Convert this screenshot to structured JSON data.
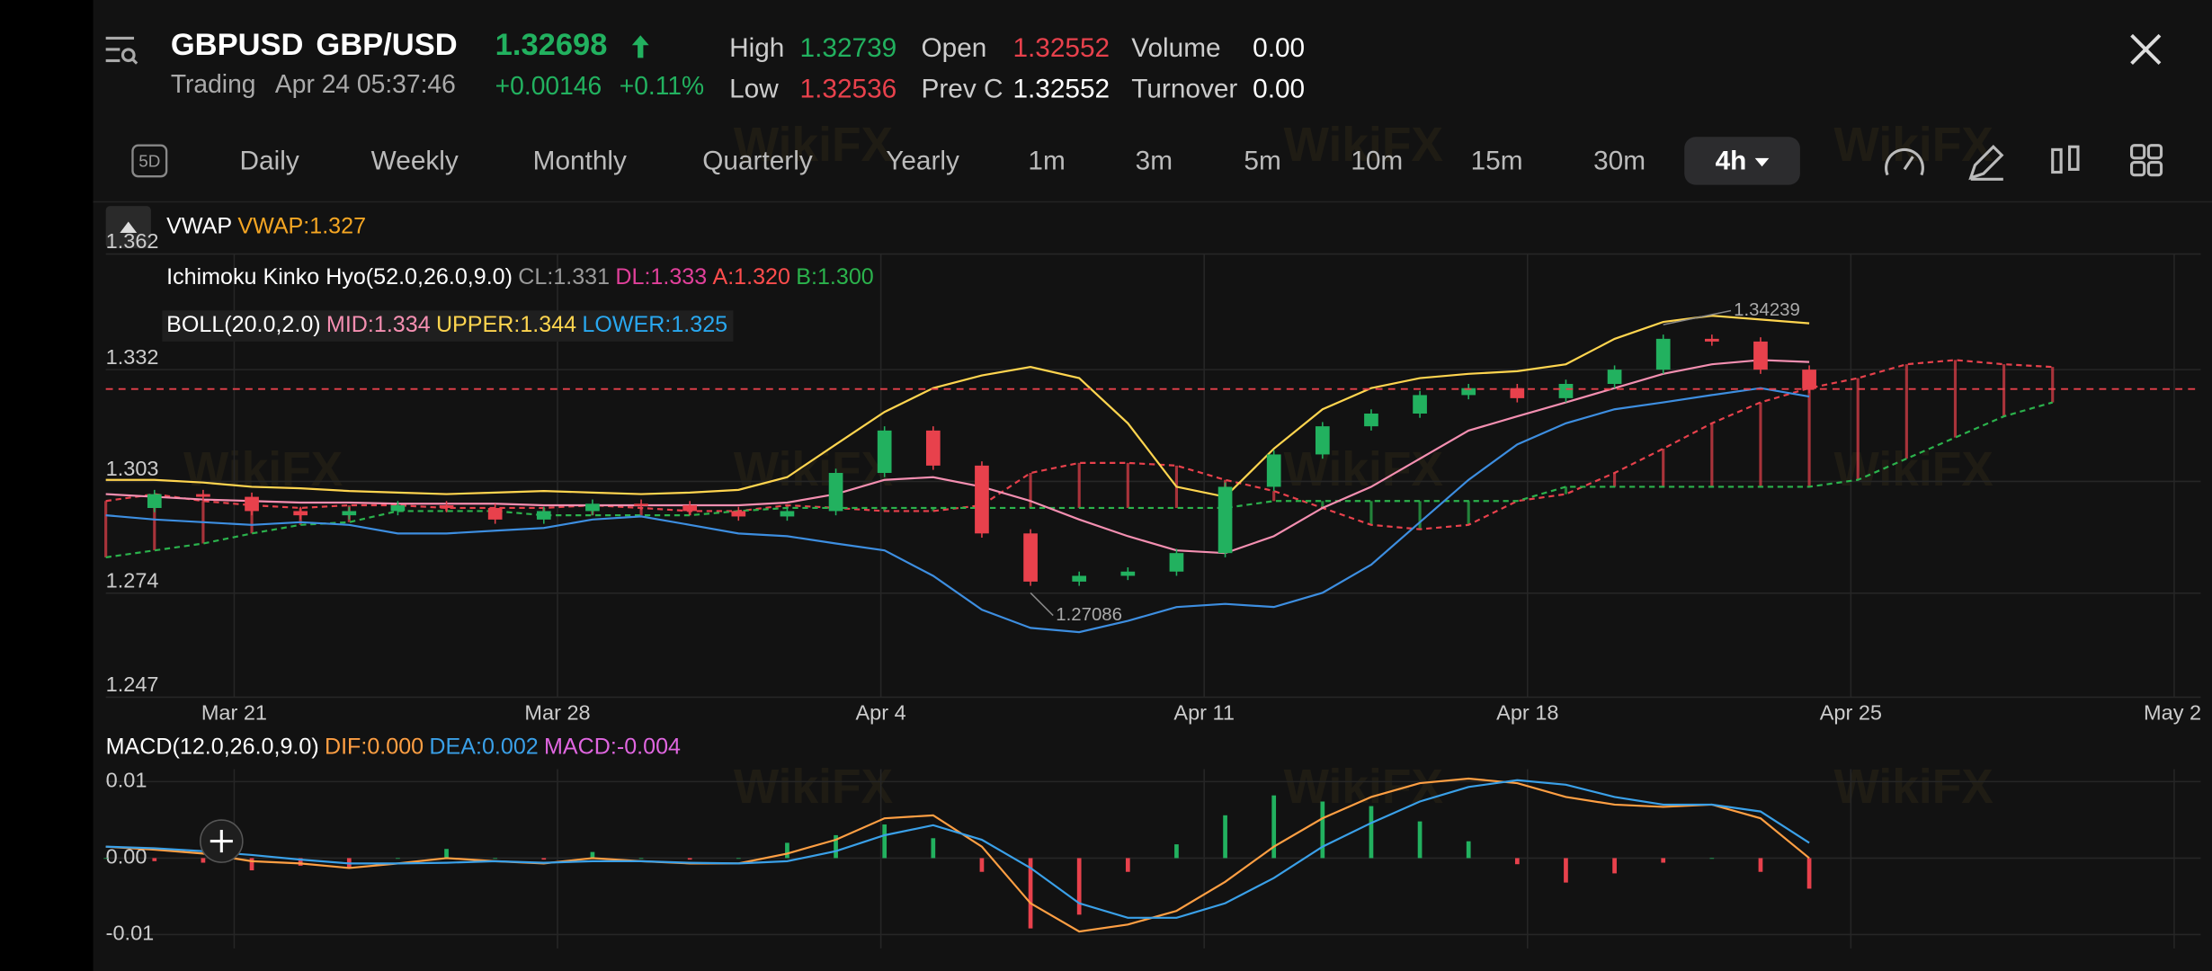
{
  "header": {
    "symbol": "GBPUSD",
    "name": "GBP/USD",
    "price": "1.32698",
    "status": "Trading",
    "time": "Apr 24 05:37:46",
    "change": "+0.00146",
    "change_pct": "+0.11%",
    "stats": [
      {
        "label": "High",
        "value": "1.32739",
        "color": "#22b15f"
      },
      {
        "label": "Open",
        "value": "1.32552",
        "color": "#e8414c"
      },
      {
        "label": "Volume",
        "value": "0.00",
        "color": "#ffffff"
      },
      {
        "label": "Low",
        "value": "1.32536",
        "color": "#e8414c"
      },
      {
        "label": "Prev C",
        "value": "1.32552",
        "color": "#ffffff"
      },
      {
        "label": "Turnover",
        "value": "0.00",
        "color": "#ffffff"
      }
    ]
  },
  "toolbar": {
    "badge": "5D",
    "periods": [
      {
        "label": "Daily"
      },
      {
        "label": "Weekly"
      },
      {
        "label": "Monthly"
      },
      {
        "label": "Quarterly"
      },
      {
        "label": "Yearly"
      },
      {
        "label": "1m"
      },
      {
        "label": "3m"
      },
      {
        "label": "5m"
      },
      {
        "label": "10m"
      },
      {
        "label": "15m"
      },
      {
        "label": "30m"
      },
      {
        "label": "4h",
        "selected": true
      }
    ]
  },
  "watermark": "WikiFX",
  "indicators": [
    {
      "title": "VWAP",
      "items": [
        {
          "text": "VWAP:1.327",
          "color": "#f5a623"
        }
      ]
    },
    {
      "title": "Ichimoku Kinko Hyo(52.0,26.0,9.0)",
      "items": [
        {
          "text": "CL:1.331",
          "color": "#9a9a9a"
        },
        {
          "text": "DL:1.333",
          "color": "#e0409a"
        },
        {
          "text": "A:1.320",
          "color": "#ff4d4d"
        },
        {
          "text": "B:1.300",
          "color": "#2bb24c"
        }
      ]
    },
    {
      "title": "BOLL(20.0,2.0)",
      "items": [
        {
          "text": "MID:1.334",
          "color": "#f48fb1"
        },
        {
          "text": "UPPER:1.344",
          "color": "#ffd54f"
        },
        {
          "text": "LOWER:1.325",
          "color": "#29a8f0"
        }
      ]
    },
    {
      "title": "MACD(12.0,26.0,9.0)",
      "items": [
        {
          "text": "DIF:0.000",
          "color": "#ff9f43"
        },
        {
          "text": "DEA:0.002",
          "color": "#3aa0e8"
        },
        {
          "text": "MACD:-0.004",
          "color": "#e066e0"
        }
      ]
    }
  ],
  "chart_data": [
    {
      "type": "candlestick",
      "x_labels": [
        "Mar 21",
        "Mar 28",
        "Apr 4",
        "Apr 11",
        "Apr 18",
        "Apr 25",
        "May 2"
      ],
      "ylim": [
        1.247,
        1.362
      ],
      "yticks": [
        1.362,
        1.332,
        1.303,
        1.274,
        1.247
      ],
      "grid": true,
      "last_price": 1.32698,
      "last_price_color": "#e8414c",
      "high_label": "1.34239",
      "low_label": "1.27086",
      "series": [
        {
          "type": "candlestick",
          "up_color": "#22b15f",
          "down_color": "#e8414c",
          "values": [
            1.2961,
            1.2997,
            1.299,
            1.2953,
            1.2942,
            1.2953,
            1.2968,
            1.2961,
            1.2931,
            1.2953,
            1.2972,
            1.2968,
            1.2953,
            1.2939,
            1.2953,
            1.3052,
            1.3162,
            1.3071,
            1.2895,
            1.277,
            1.2785,
            1.2796,
            1.2844,
            1.3016,
            1.31,
            1.3173,
            1.3206,
            1.3254,
            1.3272,
            1.3246,
            1.3283,
            1.332,
            1.34,
            1.3393,
            1.332,
            1.327,
            null,
            null,
            null,
            null,
            null
          ]
        },
        {
          "type": "line",
          "color": "#ffd54f",
          "values": [
            1.3034,
            1.3034,
            1.3027,
            1.3016,
            1.3012,
            1.3005,
            1.3001,
            1.2997,
            1.3001,
            1.3005,
            1.3001,
            1.2997,
            1.3001,
            1.3008,
            1.3041,
            1.3126,
            1.321,
            1.3272,
            1.3305,
            1.3327,
            1.3298,
            1.3181,
            1.3016,
            1.299,
            1.3115,
            1.3217,
            1.3272,
            1.3298,
            1.3309,
            1.3316,
            1.3334,
            1.34,
            1.3444,
            1.346,
            1.345,
            1.344,
            null,
            null,
            null,
            null,
            null
          ]
        },
        {
          "type": "line",
          "color": "#f48fb1",
          "values": [
            1.2997,
            1.299,
            1.2983,
            1.2979,
            1.2975,
            1.2975,
            1.2972,
            1.2972,
            1.2972,
            1.2968,
            1.2968,
            1.2968,
            1.2968,
            1.2968,
            1.2975,
            1.2997,
            1.3034,
            1.3041,
            1.3016,
            1.2979,
            1.2931,
            1.2888,
            1.2851,
            1.2844,
            1.2888,
            1.2961,
            1.3016,
            1.3089,
            1.3162,
            1.3199,
            1.3235,
            1.3272,
            1.3309,
            1.3334,
            1.3345,
            1.334,
            null,
            null,
            null,
            null,
            null
          ]
        },
        {
          "type": "line",
          "color": "#3d8ee0",
          "values": [
            1.2942,
            1.2931,
            1.2924,
            1.2917,
            1.2924,
            1.2917,
            1.2895,
            1.2895,
            1.2902,
            1.2909,
            1.2931,
            1.2939,
            1.2917,
            1.2895,
            1.2888,
            1.2869,
            1.2851,
            1.2785,
            1.2697,
            1.265,
            1.2639,
            1.2668,
            1.2704,
            1.2712,
            1.2704,
            1.2741,
            1.2814,
            1.2924,
            1.3034,
            1.3126,
            1.3181,
            1.3217,
            1.3235,
            1.3254,
            1.3272,
            1.325,
            null,
            null,
            null,
            null,
            null
          ]
        },
        {
          "type": "cloud",
          "up_color": "#e8414c",
          "down_color": "#2bb24c",
          "values_a": [
            1.2979,
            1.2997,
            1.2979,
            1.2968,
            1.2961,
            1.2968,
            1.2968,
            1.2961,
            1.2961,
            1.2961,
            1.2968,
            1.2961,
            1.2953,
            1.2953,
            1.2968,
            1.2961,
            1.2953,
            1.2953,
            1.2968,
            1.3052,
            1.3078,
            1.3078,
            1.3071,
            1.3034,
            1.3005,
            1.2961,
            1.2917,
            1.2906,
            1.2917,
            1.2979,
            1.2997,
            1.3052,
            1.3115,
            1.3181,
            1.3235,
            1.3272,
            1.3298,
            1.3334,
            1.3345,
            1.3334,
            1.3327
          ],
          "values_b": [
            1.2833,
            1.2851,
            1.2869,
            1.2895,
            1.2917,
            1.2924,
            1.2953,
            1.2953,
            1.2953,
            1.2942,
            1.2942,
            1.2942,
            1.2942,
            1.2953,
            1.2961,
            1.2961,
            1.2961,
            1.2961,
            1.2961,
            1.2961,
            1.2961,
            1.2961,
            1.2961,
            1.2961,
            1.2979,
            1.2979,
            1.2979,
            1.2979,
            1.2979,
            1.2979,
            1.3016,
            1.3016,
            1.3016,
            1.3016,
            1.3016,
            1.3016,
            1.3034,
            1.3089,
            1.3144,
            1.3199,
            1.3235
          ]
        }
      ]
    },
    {
      "type": "macd",
      "ylim": [
        -0.012,
        0.012
      ],
      "yticks": [
        0.01,
        {
          "value": 0,
          "label": "0.00"
        },
        -0.01
      ],
      "grid": true,
      "series": [
        {
          "type": "histogram",
          "up_color": "#22b15f",
          "down_color": "#e8414c",
          "values": [
            0,
            -0.0004,
            -0.0006,
            -0.0016,
            -0.001,
            -0.0012,
            0,
            0.0012,
            0,
            -0.0002,
            0.0008,
            0,
            -0.0002,
            0,
            0.002,
            0.003,
            0.0044,
            0.0026,
            -0.0018,
            -0.0092,
            -0.0074,
            -0.0018,
            0.0018,
            0.0056,
            0.0082,
            0.0074,
            0.0068,
            0.0048,
            0.0022,
            -0.0008,
            -0.0032,
            -0.002,
            -0.0006,
            0,
            -0.0018,
            -0.004
          ]
        },
        {
          "type": "line",
          "color": "#ff9f43",
          "values": [
            0.0015,
            0.0011,
            0.0006,
            -0.0004,
            -0.0007,
            -0.0013,
            -0.0007,
            0.0,
            -0.0004,
            -0.0007,
            0.0,
            -0.0004,
            -0.0007,
            -0.0007,
            0.0006,
            0.0024,
            0.0052,
            0.0056,
            0.0015,
            -0.0059,
            -0.0096,
            -0.0087,
            -0.0069,
            -0.0031,
            0.0015,
            0.0052,
            0.008,
            0.0098,
            0.0104,
            0.0098,
            0.008,
            0.007,
            0.0067,
            0.007,
            0.0052,
            0.0
          ]
        },
        {
          "type": "line",
          "color": "#3aa0e8",
          "values": [
            0.0015,
            0.0013,
            0.0009,
            0.0004,
            -0.0002,
            -0.0007,
            -0.0007,
            -0.0006,
            -0.0004,
            -0.0006,
            -0.0004,
            -0.0004,
            -0.0006,
            -0.0007,
            -0.0004,
            0.0009,
            0.003,
            0.0043,
            0.0024,
            -0.0013,
            -0.0059,
            -0.0078,
            -0.0078,
            -0.0059,
            -0.0026,
            0.0015,
            0.0046,
            0.0074,
            0.0093,
            0.0102,
            0.0096,
            0.008,
            0.007,
            0.007,
            0.0061,
            0.002
          ]
        }
      ]
    }
  ]
}
